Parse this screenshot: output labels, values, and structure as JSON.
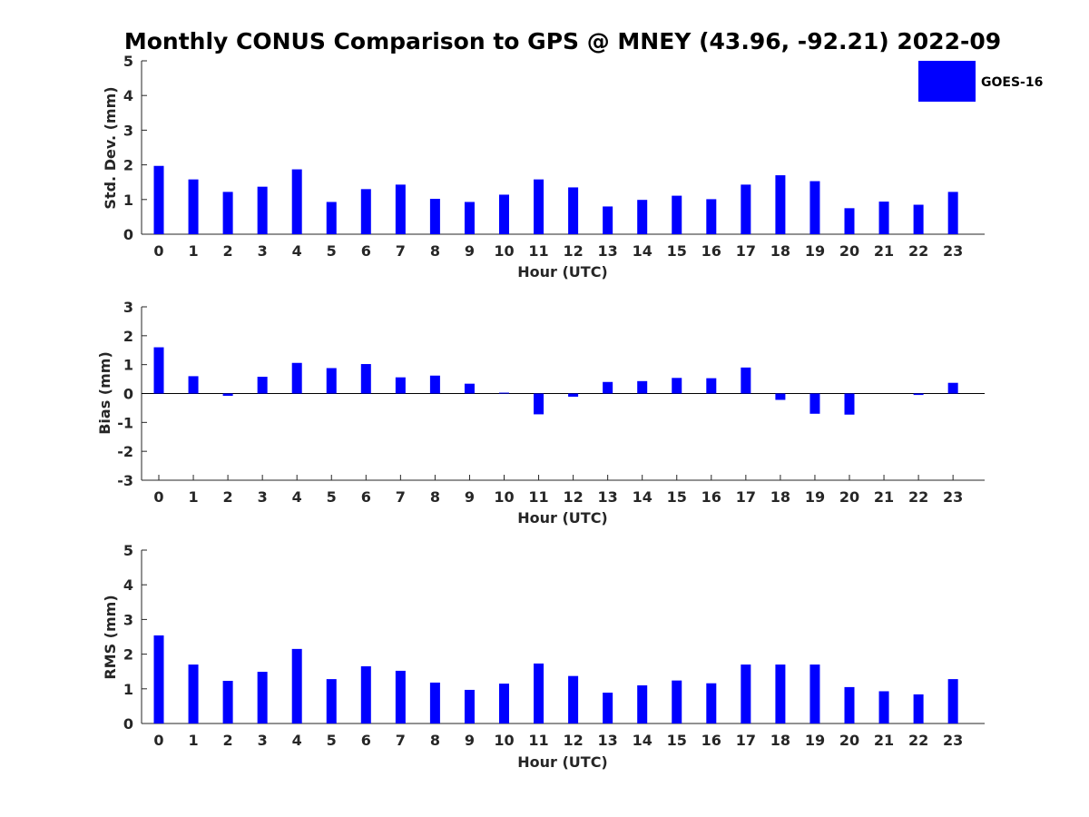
{
  "chart_data": [
    {
      "type": "bar",
      "title": "Monthly CONUS Comparison to GPS @ MNEY (43.96, -92.21) 2022-09",
      "xlabel": "Hour (UTC)",
      "ylabel": "Std. Dev. (mm)",
      "ylim": [
        0,
        5
      ],
      "yticks": [
        "0",
        "1",
        "2",
        "3",
        "4",
        "5"
      ],
      "categories": [
        "0",
        "1",
        "2",
        "3",
        "4",
        "5",
        "6",
        "7",
        "8",
        "9",
        "10",
        "11",
        "12",
        "13",
        "14",
        "15",
        "16",
        "17",
        "18",
        "19",
        "20",
        "21",
        "22",
        "23"
      ],
      "series": [
        {
          "name": "GOES-16",
          "color": "#0000ff",
          "values": [
            1.97,
            1.58,
            1.22,
            1.37,
            1.87,
            0.93,
            1.3,
            1.43,
            1.02,
            0.93,
            1.14,
            1.58,
            1.35,
            0.8,
            0.99,
            1.11,
            1.01,
            1.43,
            1.7,
            1.53,
            0.75,
            0.94,
            0.85,
            1.22
          ]
        }
      ],
      "legend": {
        "position": "top-right",
        "entries": [
          "GOES-16"
        ]
      },
      "grid": false
    },
    {
      "type": "bar",
      "xlabel": "Hour (UTC)",
      "ylabel": "Bias (mm)",
      "ylim": [
        -3,
        3
      ],
      "yticks": [
        "-3",
        "-2",
        "-1",
        "0",
        "1",
        "2",
        "3"
      ],
      "categories": [
        "0",
        "1",
        "2",
        "3",
        "4",
        "5",
        "6",
        "7",
        "8",
        "9",
        "10",
        "11",
        "12",
        "13",
        "14",
        "15",
        "16",
        "17",
        "18",
        "19",
        "20",
        "21",
        "22",
        "23"
      ],
      "series": [
        {
          "name": "GOES-16",
          "color": "#0000ff",
          "values": [
            1.6,
            0.6,
            -0.08,
            0.58,
            1.06,
            0.88,
            1.02,
            0.56,
            0.62,
            0.34,
            0.03,
            -0.72,
            -0.11,
            0.4,
            0.43,
            0.54,
            0.53,
            0.9,
            -0.22,
            -0.7,
            -0.73,
            0.0,
            -0.05,
            0.37
          ]
        }
      ],
      "grid": false
    },
    {
      "type": "bar",
      "xlabel": "Hour (UTC)",
      "ylabel": "RMS (mm)",
      "ylim": [
        0,
        5
      ],
      "yticks": [
        "0",
        "1",
        "2",
        "3",
        "4",
        "5"
      ],
      "categories": [
        "0",
        "1",
        "2",
        "3",
        "4",
        "5",
        "6",
        "7",
        "8",
        "9",
        "10",
        "11",
        "12",
        "13",
        "14",
        "15",
        "16",
        "17",
        "18",
        "19",
        "20",
        "21",
        "22",
        "23"
      ],
      "series": [
        {
          "name": "GOES-16",
          "color": "#0000ff",
          "values": [
            2.54,
            1.7,
            1.23,
            1.49,
            2.15,
            1.28,
            1.65,
            1.52,
            1.18,
            0.97,
            1.15,
            1.73,
            1.37,
            0.89,
            1.1,
            1.24,
            1.16,
            1.7,
            1.7,
            1.7,
            1.05,
            0.93,
            0.84,
            1.28
          ]
        }
      ],
      "grid": false
    }
  ]
}
